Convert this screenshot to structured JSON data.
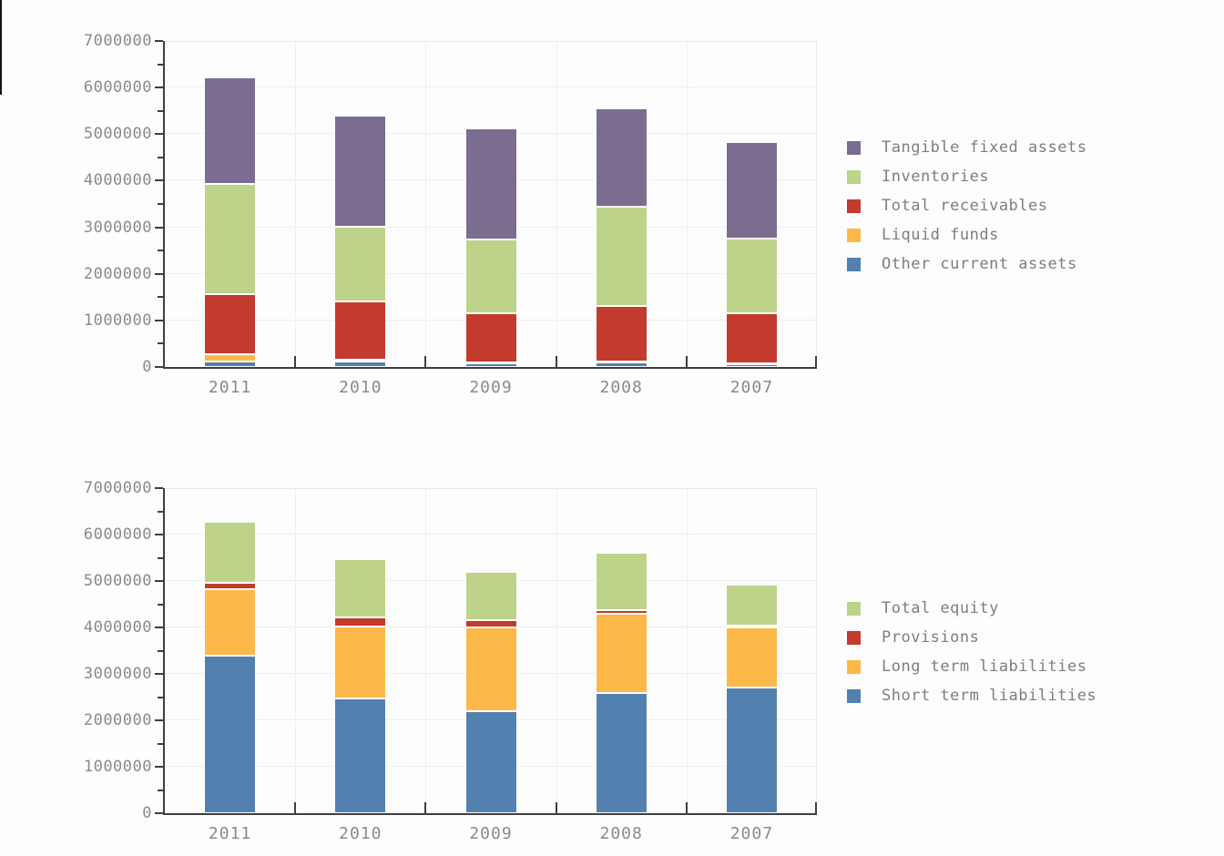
{
  "page": {
    "background": "#fdfdfd"
  },
  "colors": {
    "axis": "#3f3f3f",
    "grid": "#efefef",
    "plot_border": "#e8e8e8",
    "tick_label": "#8a8a8a",
    "legend_text": "#7e7e7e",
    "segment_stroke": "#ffffff"
  },
  "chart_data": [
    {
      "id": "assets-chart",
      "type": "bar",
      "stacked": true,
      "title": "",
      "xlabel": "",
      "ylabel": "",
      "grid": true,
      "legend_position": "right",
      "categories": [
        "2011",
        "2010",
        "2009",
        "2008",
        "2007"
      ],
      "ylim": [
        0,
        7000000
      ],
      "ytick_interval": 1000000,
      "yminortick_interval": 500000,
      "ytick_labels": [
        "0",
        "1000000",
        "2000000",
        "3000000",
        "4000000",
        "5000000",
        "6000000",
        "7000000"
      ],
      "series": [
        {
          "name": "Other current assets",
          "color": "#5381af",
          "values": [
            110000,
            120000,
            80000,
            90000,
            60000
          ]
        },
        {
          "name": "Liquid funds",
          "color": "#fdb84a",
          "values": [
            160000,
            30000,
            20000,
            30000,
            20000
          ]
        },
        {
          "name": "Total receivables",
          "color": "#c23b2e",
          "values": [
            1290000,
            1250000,
            1060000,
            1200000,
            1080000
          ]
        },
        {
          "name": "Inventories",
          "color": "#bdd389",
          "values": [
            2380000,
            1620000,
            1570000,
            2120000,
            1600000
          ]
        },
        {
          "name": "Tangible fixed assets",
          "color": "#7a6d90",
          "values": [
            2280000,
            2380000,
            2390000,
            2110000,
            2070000
          ]
        }
      ],
      "legend": [
        {
          "label": "Tangible fixed assets",
          "color": "#7a6d90"
        },
        {
          "label": "Inventories",
          "color": "#bdd389"
        },
        {
          "label": "Total receivables",
          "color": "#c23b2e"
        },
        {
          "label": "Liquid funds",
          "color": "#fdb84a"
        },
        {
          "label": "Other current assets",
          "color": "#5381af"
        }
      ]
    },
    {
      "id": "equity-liabilities-chart",
      "type": "bar",
      "stacked": true,
      "title": "",
      "xlabel": "",
      "ylabel": "",
      "grid": true,
      "legend_position": "right",
      "categories": [
        "2011",
        "2010",
        "2009",
        "2008",
        "2007"
      ],
      "ylim": [
        0,
        7000000
      ],
      "ytick_interval": 1000000,
      "yminortick_interval": 500000,
      "ytick_labels": [
        "0",
        "1000000",
        "2000000",
        "3000000",
        "4000000",
        "5000000",
        "6000000",
        "7000000"
      ],
      "series": [
        {
          "name": "Short term liabilities",
          "color": "#5381af",
          "values": [
            3400000,
            2480000,
            2190000,
            2590000,
            2710000
          ]
        },
        {
          "name": "Long term liabilities",
          "color": "#fdb84a",
          "values": [
            1420000,
            1540000,
            1810000,
            1710000,
            1300000
          ]
        },
        {
          "name": "Provisions",
          "color": "#c23b2e",
          "values": [
            150000,
            200000,
            160000,
            80000,
            30000
          ]
        },
        {
          "name": "Total equity",
          "color": "#bdd389",
          "values": [
            1310000,
            1260000,
            1030000,
            1220000,
            880000
          ]
        }
      ],
      "legend": [
        {
          "label": "Total equity",
          "color": "#bdd389"
        },
        {
          "label": "Provisions",
          "color": "#c23b2e"
        },
        {
          "label": "Long term liabilities",
          "color": "#fdb84a"
        },
        {
          "label": "Short term liabilities",
          "color": "#5381af"
        }
      ]
    }
  ]
}
